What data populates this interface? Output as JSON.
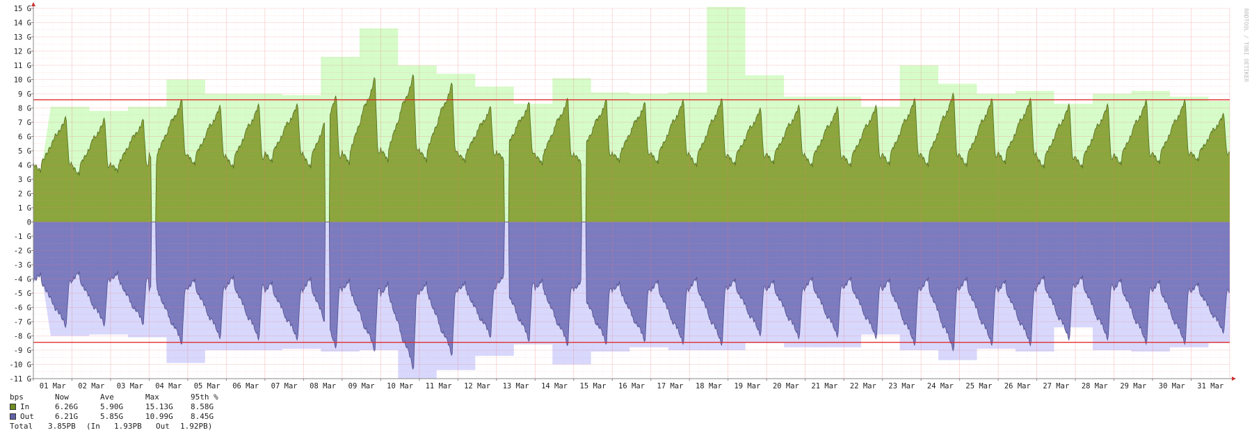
{
  "watermark": "RRDTOOL / TOBI OETIKER",
  "chart_data": {
    "type": "area",
    "unit": "bps",
    "x_labels": [
      "01 Mar",
      "02 Mar",
      "03 Mar",
      "04 Mar",
      "05 Mar",
      "06 Mar",
      "07 Mar",
      "08 Mar",
      "09 Mar",
      "10 Mar",
      "11 Mar",
      "12 Mar",
      "13 Mar",
      "14 Mar",
      "15 Mar",
      "16 Mar",
      "17 Mar",
      "18 Mar",
      "19 Mar",
      "20 Mar",
      "21 Mar",
      "22 Mar",
      "23 Mar",
      "24 Mar",
      "25 Mar",
      "26 Mar",
      "27 Mar",
      "28 Mar",
      "29 Mar",
      "30 Mar",
      "31 Mar"
    ],
    "y_ticks": [
      "15 G",
      "14 G",
      "13 G",
      "12 G",
      "11 G",
      "10 G",
      "9 G",
      "8 G",
      "7 G",
      "6 G",
      "5 G",
      "4 G",
      "3 G",
      "2 G",
      "1 G",
      "0",
      "-1 G",
      "-2 G",
      "-3 G",
      "-4 G",
      "-5 G",
      "-6 G",
      "-7 G",
      "-8 G",
      "-9 G",
      "-10 G",
      "-11 G"
    ],
    "ylim": [
      -11,
      15
    ],
    "grid": true,
    "series": [
      {
        "name": "In",
        "color": "#8aa63c",
        "max_color": "#d6fcc9",
        "daily_peak": [
          7.4,
          7.3,
          7.2,
          8.6,
          8.2,
          8.3,
          8.3,
          8.9,
          10.2,
          10.4,
          9.8,
          8.1,
          8.4,
          8.7,
          8.6,
          8.4,
          8.6,
          8.7,
          8.0,
          8.2,
          8.1,
          8.2,
          8.7,
          9.1,
          8.7,
          8.7,
          8.3,
          8.3,
          8.6,
          8.6,
          7.6
        ],
        "daily_low": [
          3.5,
          3.3,
          3.5,
          4.1,
          4.0,
          3.8,
          4.2,
          3.8,
          4.0,
          4.2,
          4.2,
          4.2,
          4.3,
          4.0,
          4.1,
          4.2,
          4.1,
          3.9,
          4.0,
          4.1,
          3.9,
          3.9,
          4.0,
          3.9,
          3.9,
          4.1,
          3.8,
          3.8,
          4.0,
          4.1,
          4.3
        ],
        "daily_max": [
          8.1,
          7.8,
          8.1,
          10.0,
          9.0,
          9.0,
          8.9,
          11.6,
          13.6,
          11.0,
          10.4,
          9.5,
          8.3,
          10.1,
          9.1,
          9.0,
          9.1,
          15.1,
          10.3,
          8.8,
          8.8,
          8.1,
          11.0,
          9.7,
          9.0,
          9.2,
          8.3,
          9.0,
          9.2,
          8.8,
          8.5
        ]
      },
      {
        "name": "Out",
        "color": "#7b7bc0",
        "max_color": "#d8d8fd",
        "daily_peak": [
          7.4,
          7.3,
          7.2,
          8.6,
          8.2,
          8.3,
          8.3,
          8.9,
          9.1,
          10.4,
          9.4,
          8.1,
          8.4,
          8.7,
          8.6,
          8.4,
          8.6,
          8.7,
          8.0,
          8.2,
          8.1,
          8.2,
          8.7,
          9.1,
          8.7,
          8.7,
          8.3,
          8.3,
          8.6,
          8.6,
          7.8
        ],
        "daily_low": [
          3.6,
          3.5,
          3.5,
          4.1,
          4.0,
          3.8,
          4.2,
          3.9,
          4.0,
          4.2,
          4.2,
          4.2,
          3.7,
          4.0,
          4.1,
          4.2,
          4.1,
          3.9,
          4.0,
          4.1,
          3.9,
          3.9,
          4.0,
          3.9,
          3.9,
          4.1,
          3.8,
          3.8,
          4.0,
          4.1,
          4.3
        ],
        "daily_max": [
          8.0,
          7.9,
          8.1,
          9.9,
          9.0,
          9.0,
          8.9,
          9.1,
          9.0,
          11.0,
          10.4,
          9.4,
          8.6,
          10.0,
          9.1,
          8.8,
          9.0,
          9.0,
          8.5,
          8.8,
          8.8,
          7.9,
          9.0,
          9.7,
          8.9,
          9.1,
          7.4,
          9.0,
          9.1,
          8.8,
          8.5
        ]
      }
    ],
    "gaps_days": [
      3.05,
      7.55,
      12.2,
      14.2
    ],
    "percentile_95": {
      "in": 8.58,
      "out": 8.45,
      "color": "#e02020"
    },
    "legend": {
      "header": [
        "bps",
        "Now",
        "Ave",
        "Max",
        "95th %"
      ],
      "rows": [
        {
          "name": "In",
          "now": "6.26G",
          "ave": "5.90G",
          "max": "15.13G",
          "p95": "8.58G"
        },
        {
          "name": "Out",
          "now": "6.21G",
          "ave": "5.85G",
          "max": "10.99G",
          "p95": "8.45G"
        }
      ],
      "total": {
        "label": "Total",
        "value": "3.85PB",
        "in_label": "(In",
        "in_value": "1.93PB",
        "out_label": "Out",
        "out_value": "1.92PB)"
      }
    }
  }
}
